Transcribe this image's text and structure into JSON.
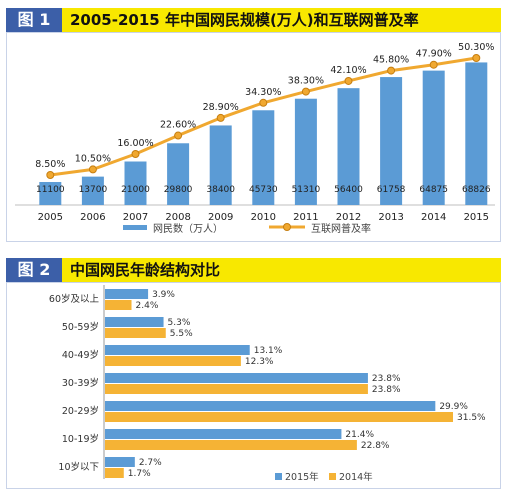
{
  "figure1": {
    "tag": "图 1",
    "title": "2005-2015 年中国网民规模(万人)和互联网普及率"
  },
  "figure2": {
    "tag": "图 2",
    "title": "中国网民年龄结构对比"
  },
  "colors": {
    "bar_blue": "#5b9bd5",
    "line_orange": "#f0a830",
    "bar_orange": "#f5b335",
    "header_yellow": "#f8e800",
    "tag_blue": "#3c5fa8"
  },
  "chart_data": [
    {
      "type": "bar",
      "categories": [
        "2005",
        "2006",
        "2007",
        "2008",
        "2009",
        "2010",
        "2011",
        "2012",
        "2013",
        "2014",
        "2015"
      ],
      "series": [
        {
          "name": "网民数（万人）",
          "type": "bar",
          "values": [
            11100,
            13700,
            21000,
            29800,
            38400,
            45730,
            51310,
            56400,
            61758,
            64875,
            68826
          ],
          "labels": [
            "11100",
            "13700",
            "21000",
            "29800",
            "38400",
            "45730",
            "51310",
            "56400",
            "61758",
            "64875",
            "68826"
          ]
        },
        {
          "name": "互联网普及率",
          "type": "line",
          "values": [
            8.5,
            10.5,
            16.0,
            22.6,
            28.9,
            34.3,
            38.3,
            42.1,
            45.8,
            47.9,
            50.3
          ],
          "labels": [
            "8.50%",
            "10.50%",
            "16.00%",
            "22.60%",
            "28.90%",
            "34.30%",
            "38.30%",
            "42.10%",
            "45.80%",
            "47.90%",
            "50.30%"
          ]
        }
      ],
      "grid": false,
      "legend": "bottom"
    },
    {
      "type": "bar",
      "orientation": "horizontal",
      "categories": [
        "60岁及以上",
        "50-59岁",
        "40-49岁",
        "30-39岁",
        "20-29岁",
        "10-19岁",
        "10岁以下"
      ],
      "series": [
        {
          "name": "2015年",
          "values": [
            3.9,
            5.3,
            13.1,
            23.8,
            29.9,
            21.4,
            2.7
          ],
          "labels": [
            "3.9%",
            "5.3%",
            "13.1%",
            "23.8%",
            "29.9%",
            "21.4%",
            "2.7%"
          ]
        },
        {
          "name": "2014年",
          "values": [
            2.4,
            5.5,
            12.3,
            23.8,
            31.5,
            22.8,
            1.7
          ],
          "labels": [
            "2.4%",
            "5.5%",
            "12.3%",
            "23.8%",
            "31.5%",
            "22.8%",
            "1.7%"
          ]
        }
      ],
      "legend": "bottom"
    }
  ]
}
